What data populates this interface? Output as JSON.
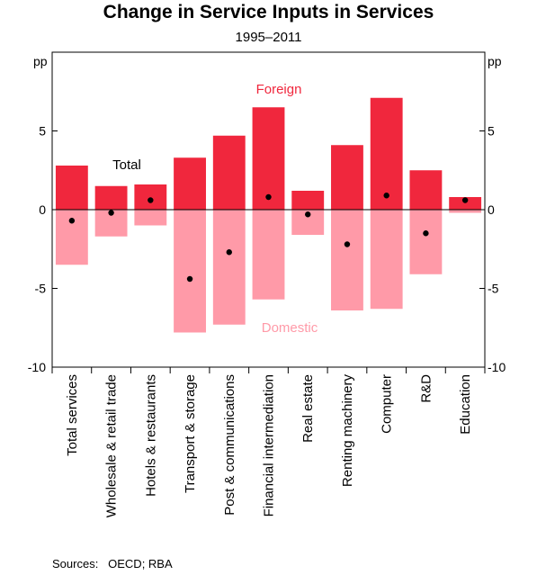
{
  "chart_data": {
    "type": "bar",
    "title": "Change in Service Inputs in Services",
    "subtitle": "1995–2011",
    "ylabel_left": "pp",
    "ylabel_right": "pp",
    "ylim": [
      -10,
      10
    ],
    "yticks": [
      -10,
      -5,
      0,
      5
    ],
    "grid": false,
    "categories": [
      "Total services",
      "Wholesale & retail trade",
      "Hotels & restaurants",
      "Transport & storage",
      "Post & communications",
      "Financial intermediation",
      "Real estate",
      "Renting machinery",
      "Computer",
      "R&D",
      "Education"
    ],
    "series": [
      {
        "name": "Foreign",
        "kind": "bar",
        "color": "#f0273d",
        "values": [
          2.8,
          1.5,
          1.6,
          3.3,
          4.7,
          6.5,
          1.2,
          4.1,
          7.1,
          2.5,
          0.8
        ]
      },
      {
        "name": "Domestic",
        "kind": "bar",
        "color": "#ff9aa8",
        "values": [
          -3.5,
          -1.7,
          -1.0,
          -7.8,
          -7.3,
          -5.7,
          -1.6,
          -6.4,
          -6.3,
          -4.1,
          -0.2
        ]
      },
      {
        "name": "Total",
        "kind": "dot",
        "color": "#000000",
        "values": [
          -0.7,
          -0.2,
          0.6,
          -4.4,
          -2.7,
          0.8,
          -0.3,
          -2.2,
          0.9,
          -1.5,
          0.6
        ]
      }
    ],
    "annotations": {
      "foreign": "Foreign",
      "domestic": "Domestic",
      "total": "Total"
    },
    "source": "Sources:   OECD; RBA"
  }
}
